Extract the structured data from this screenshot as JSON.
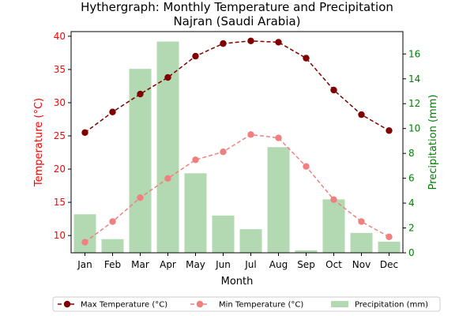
{
  "chart_data": {
    "type": "bar",
    "title": "Hythergraph: Monthly Temperature and Precipitation",
    "subtitle": "Najran (Saudi Arabia)",
    "xlabel": "Month",
    "ylabel_left": "Temperature (°C)",
    "ylabel_right": "Precipitation (mm)",
    "categories": [
      "Jan",
      "Feb",
      "Mar",
      "Apr",
      "May",
      "Jun",
      "Jul",
      "Aug",
      "Sep",
      "Oct",
      "Nov",
      "Dec"
    ],
    "ylim_left": [
      7.4,
      40.7
    ],
    "ylim_right": [
      0,
      17.8
    ],
    "yticks_left": [
      10,
      15,
      20,
      25,
      30,
      35,
      40
    ],
    "yticks_right": [
      0,
      2,
      4,
      6,
      8,
      10,
      12,
      14,
      16
    ],
    "grid": false,
    "legend_placement": "bottom-center",
    "series": [
      {
        "name": "Max Temperature (°C)",
        "kind": "line",
        "axis": "left",
        "color": "#800000",
        "style": "dashed",
        "values": [
          25.5,
          28.6,
          31.3,
          33.8,
          37.0,
          38.9,
          39.3,
          39.1,
          36.7,
          31.9,
          28.2,
          25.8
        ]
      },
      {
        "name": "Min Temperature (°C)",
        "kind": "line",
        "axis": "left",
        "color": "#f08080",
        "style": "dashed",
        "values": [
          9.0,
          12.1,
          15.7,
          18.6,
          21.4,
          22.6,
          25.2,
          24.7,
          20.4,
          15.4,
          12.1,
          9.8
        ]
      },
      {
        "name": "Precipitation (mm)",
        "kind": "bar",
        "axis": "right",
        "color": "#b2d9b2",
        "values": [
          3.1,
          1.1,
          14.8,
          17.0,
          6.4,
          3.0,
          1.9,
          8.5,
          0.2,
          4.3,
          1.6,
          0.9
        ]
      }
    ]
  },
  "colors": {
    "left_axis": "#ff0000",
    "right_axis": "#008000"
  }
}
